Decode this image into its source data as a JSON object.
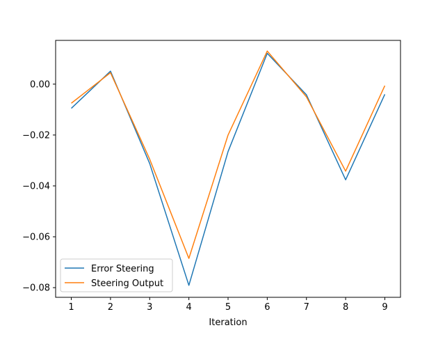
{
  "chart_data": {
    "type": "line",
    "title": "",
    "xlabel": "Iteration",
    "ylabel": "",
    "x": [
      1,
      2,
      3,
      4,
      5,
      6,
      7,
      8,
      9
    ],
    "xlim": [
      0.6,
      9.4
    ],
    "ylim": [
      -0.0838,
      0.0172
    ],
    "x_ticks": [
      1,
      2,
      3,
      4,
      5,
      6,
      7,
      8,
      9
    ],
    "y_ticks": [
      -0.08,
      -0.06,
      -0.04,
      -0.02,
      0.0
    ],
    "y_tick_labels": [
      "−0.08",
      "−0.06",
      "−0.04",
      "−0.02",
      "0.00"
    ],
    "grid": false,
    "legend_position": "lower-left",
    "series": [
      {
        "name": "Error Steering",
        "color": "#1f77b4",
        "values": [
          -0.0095,
          0.0051,
          -0.0312,
          -0.0791,
          -0.0265,
          0.0121,
          -0.0042,
          -0.0376,
          -0.004
        ]
      },
      {
        "name": "Steering Output",
        "color": "#ff7f0e",
        "values": [
          -0.0075,
          0.0045,
          -0.0295,
          -0.0685,
          -0.02,
          0.013,
          -0.005,
          -0.0342,
          -0.0006
        ]
      }
    ]
  }
}
